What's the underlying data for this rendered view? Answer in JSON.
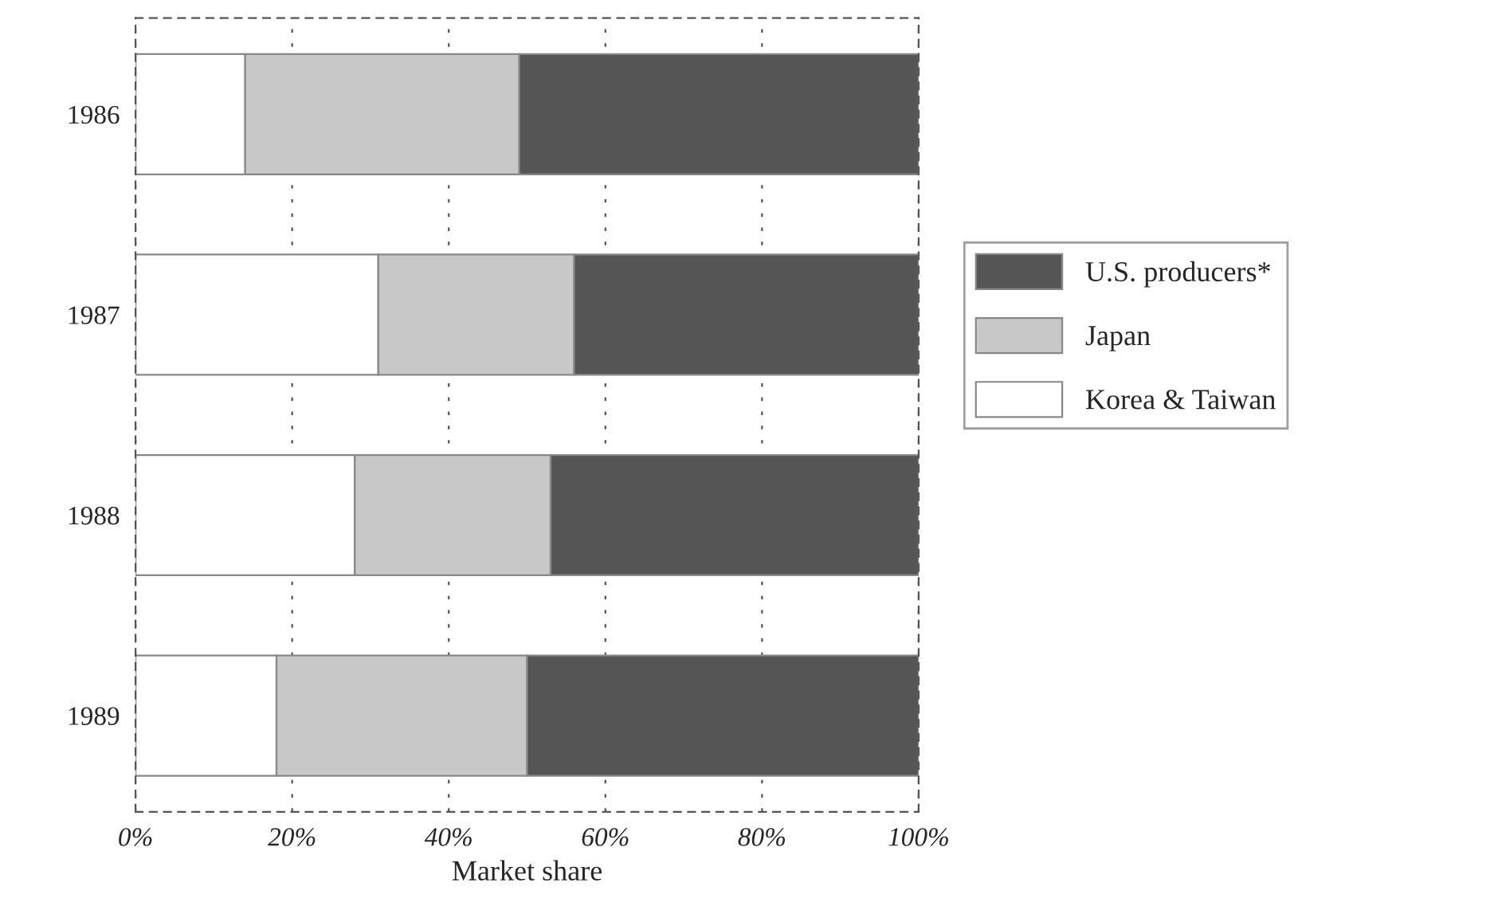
{
  "chart_data": {
    "type": "bar",
    "orientation": "horizontal",
    "stacked": true,
    "xlabel": "Market share",
    "categories": [
      "1986",
      "1987",
      "1988",
      "1989"
    ],
    "series": [
      {
        "name": "Korea & Taiwan",
        "color": "#ffffff",
        "values": [
          14,
          31,
          28,
          18
        ]
      },
      {
        "name": "Japan",
        "color": "#c8c8c8",
        "values": [
          35,
          25,
          25,
          32
        ]
      },
      {
        "name": "U.S. producers*",
        "color": "#555555",
        "values": [
          51,
          44,
          47,
          50
        ]
      }
    ],
    "xlim": [
      0,
      100
    ],
    "xticks": [
      {
        "value": 0,
        "label": "0%"
      },
      {
        "value": 20,
        "label": "20%"
      },
      {
        "value": 40,
        "label": "40%"
      },
      {
        "value": 60,
        "label": "60%"
      },
      {
        "value": 80,
        "label": "80%"
      },
      {
        "value": 100,
        "label": "100%"
      }
    ],
    "grid": "x",
    "legend": "right"
  }
}
